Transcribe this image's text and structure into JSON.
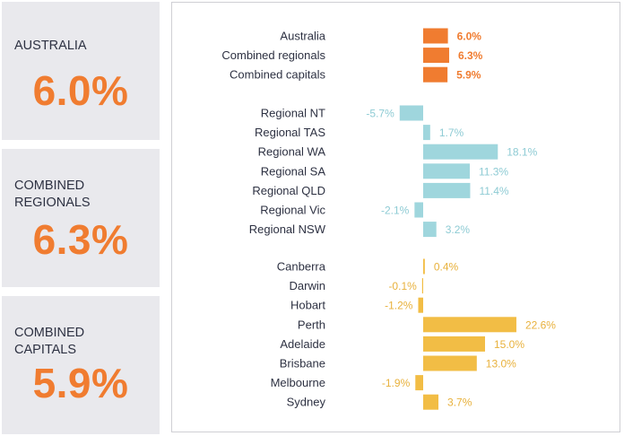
{
  "cards": [
    {
      "label": "Australia",
      "value": "6.0%"
    },
    {
      "label": "Combined\nregionals",
      "value": "6.3%"
    },
    {
      "label": "Combined\ncapitals",
      "value": "5.9%"
    }
  ],
  "colors": {
    "summary": "#f07c30",
    "regional": "#9fd6dd",
    "regional_text": "#8ecbd4",
    "capital": "#f2bd45",
    "capital_text": "#e8b13c",
    "value_text": "#f07c30"
  },
  "chart_data": {
    "type": "bar",
    "orientation": "horizontal",
    "unit": "%",
    "groups": [
      {
        "color": "#f07c30",
        "categories": [
          "Australia",
          "Combined regionals",
          "Combined capitals"
        ],
        "values": [
          6.0,
          6.3,
          5.9
        ],
        "labels": [
          "6.0%",
          "6.3%",
          "5.9%"
        ]
      },
      {
        "color": "#9fd6dd",
        "categories": [
          "Regional NT",
          "Regional TAS",
          "Regional WA",
          "Regional SA",
          "Regional QLD",
          "Regional Vic",
          "Regional NSW"
        ],
        "values": [
          -5.7,
          1.7,
          18.1,
          11.3,
          11.4,
          -2.1,
          3.2
        ],
        "labels": [
          "-5.7%",
          "1.7%",
          "18.1%",
          "11.3%",
          "11.4%",
          "-2.1%",
          "3.2%"
        ]
      },
      {
        "color": "#f2bd45",
        "categories": [
          "Canberra",
          "Darwin",
          "Hobart",
          "Perth",
          "Adelaide",
          "Brisbane",
          "Melbourne",
          "Sydney"
        ],
        "values": [
          0.4,
          -0.1,
          -1.2,
          22.6,
          15.0,
          13.0,
          -1.9,
          3.7
        ],
        "labels": [
          "0.4%",
          "-0.1%",
          "-1.2%",
          "22.6%",
          "15.0%",
          "13.0%",
          "-1.9%",
          "3.7%"
        ]
      }
    ]
  }
}
